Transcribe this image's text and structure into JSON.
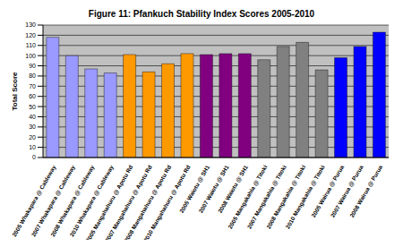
{
  "chart_data": {
    "type": "bar",
    "title": "Figure 11: Pfankuch Stability Index Scores 2005-2010",
    "y_label": "Total Score",
    "categories": [
      "2005 Whakapara @ Cableway",
      "2007 Whakapara @ Cableway",
      "2008 Whakapara @ Cableway",
      "2010 Whakapara @ Cableway",
      "2005 Mangahahuru @ Apotu Rd",
      "2007 Mangahahuru @ Apotu Rd",
      "2008 Mangahahuru @ Apotu Rd",
      "2010 Mangahahuru @ Apotu Rd",
      "2005 Waiotu @ SH1",
      "2007 Waiotu @ SH1",
      "2008 Waiotu @ SH1",
      "2005 Mangakahia @ Titoki",
      "2007 Mangakahia @ Titoki",
      "2008 Mangakahia @ Titoki",
      "2010 Mangakahia @ Titoki",
      "2005 Wairua @ Purua",
      "2007 Wairua @ Purua",
      "2008 Wairua @ Purua"
    ],
    "values": [
      118,
      100,
      87,
      83,
      101,
      84,
      92,
      102,
      101,
      102,
      102,
      96,
      109,
      113,
      86,
      98,
      109,
      123
    ],
    "colors": [
      "#9999ff",
      "#9999ff",
      "#9999ff",
      "#9999ff",
      "#ff9900",
      "#ff9900",
      "#ff9900",
      "#ff9900",
      "#800080",
      "#800080",
      "#800080",
      "#808080",
      "#808080",
      "#808080",
      "#808080",
      "#0000ff",
      "#0000ff",
      "#0000ff"
    ],
    "ylim": [
      0,
      130
    ],
    "yticks": [
      0,
      10,
      20,
      30,
      40,
      50,
      60,
      70,
      80,
      90,
      100,
      110,
      120,
      130
    ],
    "grid": true
  }
}
